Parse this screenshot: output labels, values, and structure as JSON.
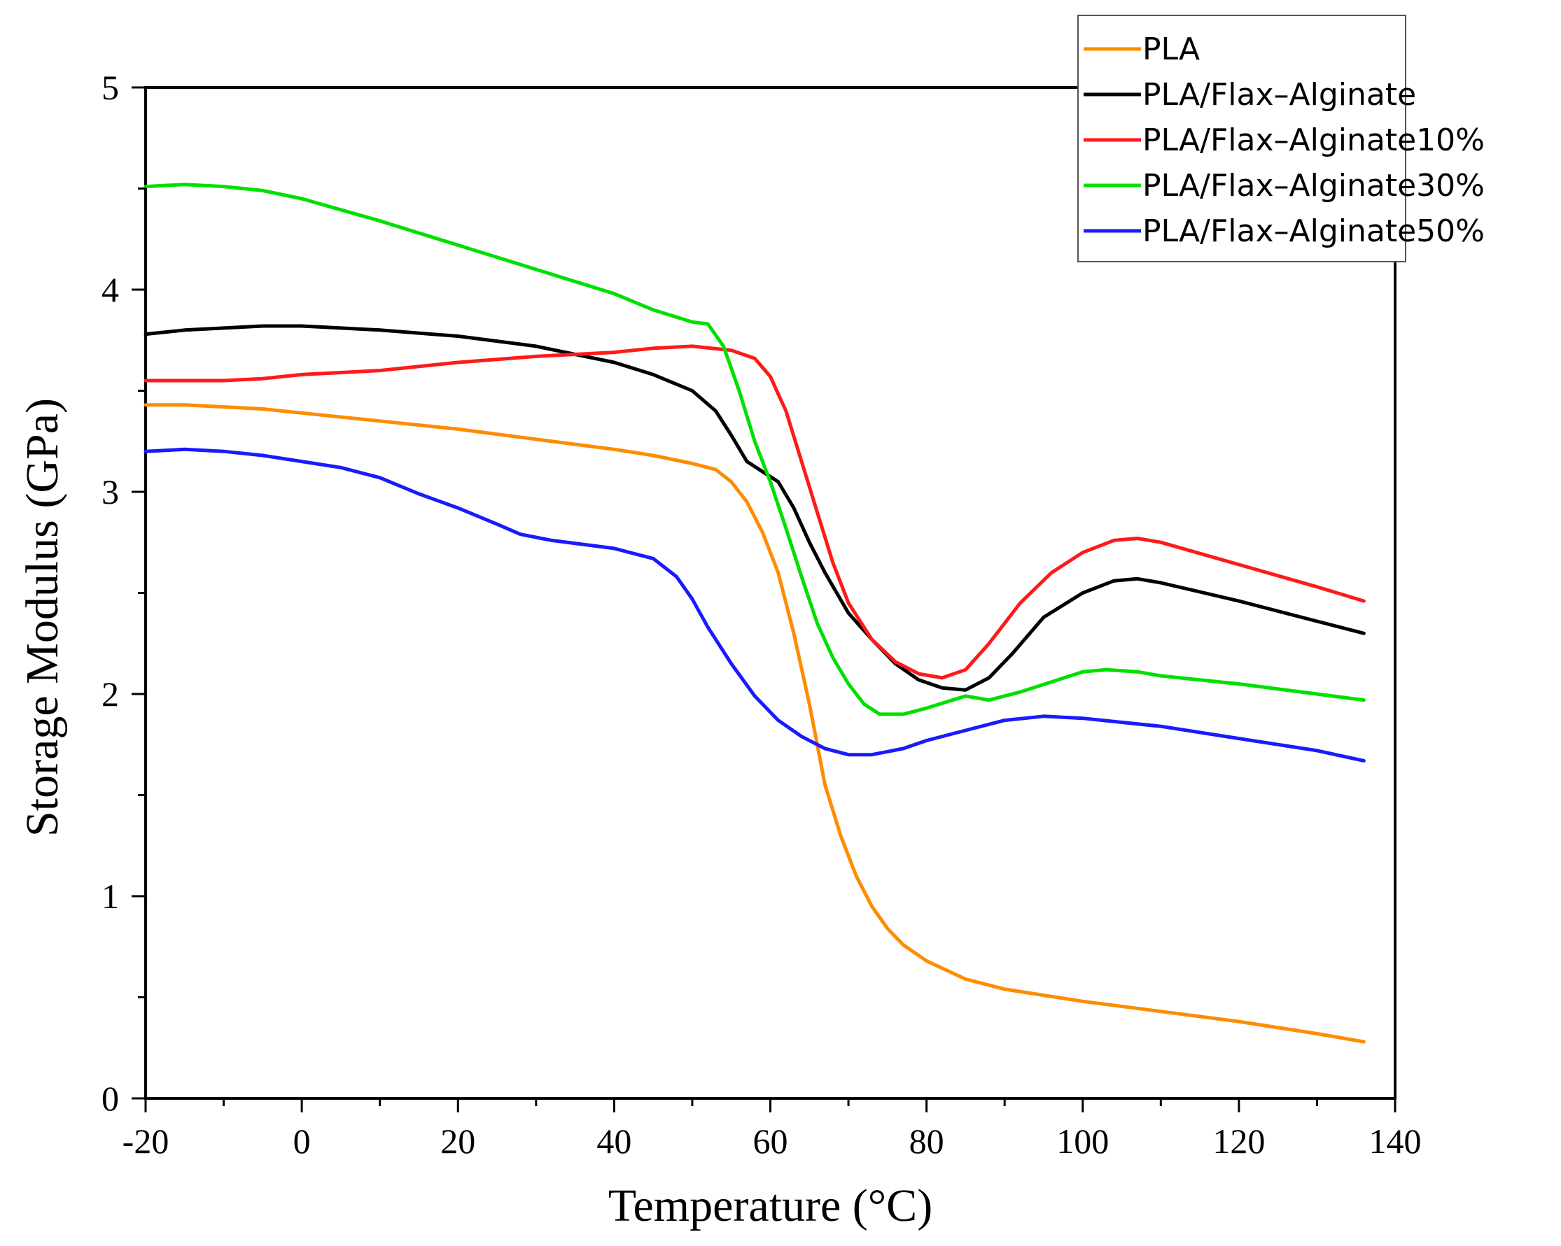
{
  "chart_data": {
    "type": "line",
    "title": "",
    "xlabel": "Temperature (°C)",
    "ylabel": "Storage Modulus (GPa)",
    "xlim": [
      -20,
      140
    ],
    "ylim": [
      0,
      5
    ],
    "x_ticks": [
      -20,
      0,
      20,
      40,
      60,
      80,
      100,
      120,
      140
    ],
    "x_tick_labels": [
      "-20",
      "0",
      "20",
      "40",
      "60",
      "80",
      "100",
      "120",
      "140"
    ],
    "y_ticks": [
      0,
      1,
      2,
      3,
      4,
      5
    ],
    "y_tick_labels": [
      "0",
      "1",
      "2",
      "3",
      "4",
      "5"
    ],
    "grid": false,
    "legend_position": "top-right",
    "series": [
      {
        "name": "PLA",
        "color": "#ff8c00",
        "points": [
          [
            -20,
            3.43
          ],
          [
            -15,
            3.43
          ],
          [
            -10,
            3.42
          ],
          [
            -5,
            3.41
          ],
          [
            0,
            3.39
          ],
          [
            10,
            3.35
          ],
          [
            20,
            3.31
          ],
          [
            30,
            3.26
          ],
          [
            40,
            3.21
          ],
          [
            45,
            3.18
          ],
          [
            50,
            3.14
          ],
          [
            53,
            3.11
          ],
          [
            55,
            3.05
          ],
          [
            57,
            2.95
          ],
          [
            59,
            2.8
          ],
          [
            61,
            2.6
          ],
          [
            63,
            2.3
          ],
          [
            65,
            1.95
          ],
          [
            67,
            1.55
          ],
          [
            69,
            1.3
          ],
          [
            71,
            1.1
          ],
          [
            73,
            0.95
          ],
          [
            75,
            0.84
          ],
          [
            77,
            0.76
          ],
          [
            80,
            0.68
          ],
          [
            85,
            0.59
          ],
          [
            90,
            0.54
          ],
          [
            95,
            0.51
          ],
          [
            100,
            0.48
          ],
          [
            110,
            0.43
          ],
          [
            120,
            0.38
          ],
          [
            130,
            0.32
          ],
          [
            136,
            0.28
          ]
        ]
      },
      {
        "name": "PLA/Flax–Alginate",
        "color": "#000000",
        "points": [
          [
            -20,
            3.78
          ],
          [
            -15,
            3.8
          ],
          [
            -10,
            3.81
          ],
          [
            -5,
            3.82
          ],
          [
            0,
            3.82
          ],
          [
            10,
            3.8
          ],
          [
            20,
            3.77
          ],
          [
            30,
            3.72
          ],
          [
            35,
            3.68
          ],
          [
            40,
            3.64
          ],
          [
            45,
            3.58
          ],
          [
            50,
            3.5
          ],
          [
            53,
            3.4
          ],
          [
            55,
            3.28
          ],
          [
            57,
            3.15
          ],
          [
            59,
            3.1
          ],
          [
            61,
            3.05
          ],
          [
            63,
            2.92
          ],
          [
            65,
            2.75
          ],
          [
            67,
            2.6
          ],
          [
            70,
            2.4
          ],
          [
            73,
            2.27
          ],
          [
            76,
            2.15
          ],
          [
            79,
            2.07
          ],
          [
            82,
            2.03
          ],
          [
            85,
            2.02
          ],
          [
            88,
            2.08
          ],
          [
            91,
            2.2
          ],
          [
            95,
            2.38
          ],
          [
            100,
            2.5
          ],
          [
            104,
            2.56
          ],
          [
            107,
            2.57
          ],
          [
            110,
            2.55
          ],
          [
            120,
            2.46
          ],
          [
            130,
            2.36
          ],
          [
            136,
            2.3
          ]
        ]
      },
      {
        "name": "PLA/Flax–Alginate10%",
        "color": "#ff1a1a",
        "points": [
          [
            -20,
            3.55
          ],
          [
            -15,
            3.55
          ],
          [
            -10,
            3.55
          ],
          [
            -5,
            3.56
          ],
          [
            0,
            3.58
          ],
          [
            10,
            3.6
          ],
          [
            20,
            3.64
          ],
          [
            30,
            3.67
          ],
          [
            40,
            3.69
          ],
          [
            45,
            3.71
          ],
          [
            50,
            3.72
          ],
          [
            55,
            3.7
          ],
          [
            58,
            3.66
          ],
          [
            60,
            3.57
          ],
          [
            62,
            3.4
          ],
          [
            64,
            3.15
          ],
          [
            66,
            2.9
          ],
          [
            68,
            2.65
          ],
          [
            70,
            2.45
          ],
          [
            73,
            2.27
          ],
          [
            76,
            2.16
          ],
          [
            79,
            2.1
          ],
          [
            82,
            2.08
          ],
          [
            85,
            2.12
          ],
          [
            88,
            2.25
          ],
          [
            92,
            2.45
          ],
          [
            96,
            2.6
          ],
          [
            100,
            2.7
          ],
          [
            104,
            2.76
          ],
          [
            107,
            2.77
          ],
          [
            110,
            2.75
          ],
          [
            120,
            2.64
          ],
          [
            130,
            2.53
          ],
          [
            136,
            2.46
          ]
        ]
      },
      {
        "name": "PLA/Flax–Alginate30%",
        "color": "#00e000",
        "points": [
          [
            -20,
            4.51
          ],
          [
            -15,
            4.52
          ],
          [
            -10,
            4.51
          ],
          [
            -5,
            4.49
          ],
          [
            0,
            4.45
          ],
          [
            10,
            4.34
          ],
          [
            20,
            4.22
          ],
          [
            30,
            4.1
          ],
          [
            40,
            3.98
          ],
          [
            45,
            3.9
          ],
          [
            50,
            3.84
          ],
          [
            52,
            3.83
          ],
          [
            54,
            3.72
          ],
          [
            56,
            3.5
          ],
          [
            58,
            3.25
          ],
          [
            60,
            3.05
          ],
          [
            62,
            2.82
          ],
          [
            64,
            2.58
          ],
          [
            66,
            2.35
          ],
          [
            68,
            2.18
          ],
          [
            70,
            2.05
          ],
          [
            72,
            1.95
          ],
          [
            74,
            1.9
          ],
          [
            77,
            1.9
          ],
          [
            80,
            1.93
          ],
          [
            85,
            1.99
          ],
          [
            88,
            1.97
          ],
          [
            92,
            2.01
          ],
          [
            96,
            2.06
          ],
          [
            100,
            2.11
          ],
          [
            103,
            2.12
          ],
          [
            107,
            2.11
          ],
          [
            110,
            2.09
          ],
          [
            120,
            2.05
          ],
          [
            130,
            2.0
          ],
          [
            136,
            1.97
          ]
        ]
      },
      {
        "name": "PLA/Flax–Alginate50%",
        "color": "#1a1aff",
        "points": [
          [
            -20,
            3.2
          ],
          [
            -15,
            3.21
          ],
          [
            -10,
            3.2
          ],
          [
            -5,
            3.18
          ],
          [
            0,
            3.15
          ],
          [
            5,
            3.12
          ],
          [
            10,
            3.07
          ],
          [
            15,
            2.99
          ],
          [
            20,
            2.92
          ],
          [
            25,
            2.84
          ],
          [
            28,
            2.79
          ],
          [
            32,
            2.76
          ],
          [
            36,
            2.74
          ],
          [
            40,
            2.72
          ],
          [
            45,
            2.67
          ],
          [
            48,
            2.58
          ],
          [
            50,
            2.47
          ],
          [
            52,
            2.33
          ],
          [
            55,
            2.15
          ],
          [
            58,
            1.99
          ],
          [
            61,
            1.87
          ],
          [
            64,
            1.79
          ],
          [
            67,
            1.73
          ],
          [
            70,
            1.7
          ],
          [
            73,
            1.7
          ],
          [
            77,
            1.73
          ],
          [
            80,
            1.77
          ],
          [
            85,
            1.82
          ],
          [
            90,
            1.87
          ],
          [
            95,
            1.89
          ],
          [
            100,
            1.88
          ],
          [
            110,
            1.84
          ],
          [
            120,
            1.78
          ],
          [
            130,
            1.72
          ],
          [
            136,
            1.67
          ]
        ]
      }
    ]
  }
}
